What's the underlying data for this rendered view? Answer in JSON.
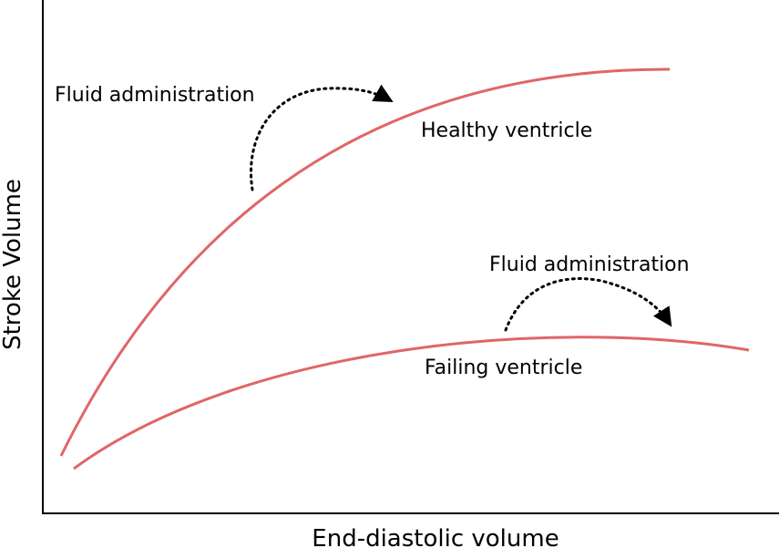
{
  "diagram": {
    "ylabel": "Stroke Volume",
    "xlabel": "End-diastolic volume",
    "curves": [
      {
        "id": "healthy",
        "label": "Healthy ventricle"
      },
      {
        "id": "failing",
        "label": "Failing ventricle"
      }
    ],
    "annotations": [
      {
        "id": "fluid-healthy",
        "label": "Fluid administration"
      },
      {
        "id": "fluid-failing",
        "label": "Fluid administration"
      }
    ],
    "colors": {
      "curve": "#e06666",
      "axis": "#000000",
      "arrow": "#000000"
    }
  }
}
